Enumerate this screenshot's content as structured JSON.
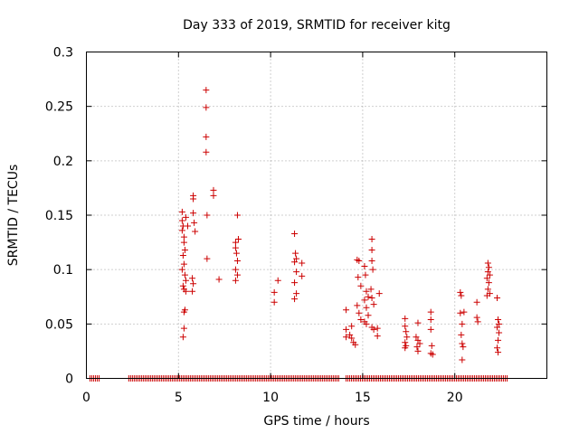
{
  "chart_data": {
    "type": "scatter",
    "title": "Day 333 of 2019, SRMTID for receiver kitg",
    "xlabel": "GPS time / hours",
    "ylabel": "SRMTID / TECUs",
    "xlim": [
      0,
      25
    ],
    "ylim": [
      0,
      0.3
    ],
    "xticks": [
      0,
      5,
      10,
      15,
      20
    ],
    "yticks": [
      0,
      0.05,
      0.1,
      0.15,
      0.2,
      0.25,
      0.3
    ],
    "x_tick_labels": [
      "0",
      "5",
      "10",
      "15",
      "20"
    ],
    "y_tick_labels": [
      "0",
      "0.05",
      "0.1",
      "0.15",
      "0.2",
      "0.25",
      "0.3"
    ],
    "grid": true,
    "marker": "+",
    "color": "#cc0000",
    "zero_band": [
      [
        0.2,
        0.7
      ],
      [
        2.3,
        13.7
      ],
      [
        14.1,
        22.9
      ]
    ],
    "series": [
      {
        "name": "SRMTID",
        "points": [
          [
            5.2,
            0.153
          ],
          [
            5.2,
            0.145
          ],
          [
            5.25,
            0.14
          ],
          [
            5.2,
            0.136
          ],
          [
            5.3,
            0.13
          ],
          [
            5.3,
            0.125
          ],
          [
            5.35,
            0.118
          ],
          [
            5.25,
            0.113
          ],
          [
            5.3,
            0.105
          ],
          [
            5.2,
            0.1
          ],
          [
            5.35,
            0.095
          ],
          [
            5.4,
            0.09
          ],
          [
            5.25,
            0.085
          ],
          [
            5.3,
            0.082
          ],
          [
            5.4,
            0.08
          ],
          [
            5.35,
            0.063
          ],
          [
            5.3,
            0.061
          ],
          [
            5.3,
            0.046
          ],
          [
            5.25,
            0.038
          ],
          [
            5.4,
            0.148
          ],
          [
            5.5,
            0.14
          ],
          [
            5.8,
            0.168
          ],
          [
            5.8,
            0.165
          ],
          [
            5.8,
            0.152
          ],
          [
            5.85,
            0.143
          ],
          [
            5.9,
            0.135
          ],
          [
            5.75,
            0.092
          ],
          [
            5.8,
            0.087
          ],
          [
            5.75,
            0.08
          ],
          [
            6.5,
            0.265
          ],
          [
            6.5,
            0.249
          ],
          [
            6.5,
            0.222
          ],
          [
            6.5,
            0.208
          ],
          [
            6.55,
            0.15
          ],
          [
            6.55,
            0.11
          ],
          [
            6.9,
            0.173
          ],
          [
            6.9,
            0.168
          ],
          [
            7.2,
            0.091
          ],
          [
            8.1,
            0.125
          ],
          [
            8.1,
            0.12
          ],
          [
            8.15,
            0.115
          ],
          [
            8.2,
            0.108
          ],
          [
            8.1,
            0.1
          ],
          [
            8.2,
            0.095
          ],
          [
            8.1,
            0.09
          ],
          [
            8.2,
            0.15
          ],
          [
            8.25,
            0.128
          ],
          [
            10.2,
            0.079
          ],
          [
            10.2,
            0.07
          ],
          [
            10.4,
            0.09
          ],
          [
            11.3,
            0.133
          ],
          [
            11.35,
            0.115
          ],
          [
            11.4,
            0.11
          ],
          [
            11.3,
            0.107
          ],
          [
            11.4,
            0.098
          ],
          [
            11.3,
            0.088
          ],
          [
            11.4,
            0.078
          ],
          [
            11.3,
            0.073
          ],
          [
            11.7,
            0.106
          ],
          [
            11.7,
            0.094
          ],
          [
            14.1,
            0.063
          ],
          [
            14.1,
            0.045
          ],
          [
            14.1,
            0.038
          ],
          [
            14.4,
            0.048
          ],
          [
            14.4,
            0.037
          ],
          [
            14.5,
            0.033
          ],
          [
            14.6,
            0.031
          ],
          [
            14.3,
            0.04
          ],
          [
            14.7,
            0.109
          ],
          [
            14.8,
            0.108
          ],
          [
            14.75,
            0.093
          ],
          [
            14.9,
            0.085
          ],
          [
            14.7,
            0.067
          ],
          [
            14.8,
            0.06
          ],
          [
            14.9,
            0.054
          ],
          [
            15.1,
            0.103
          ],
          [
            15.15,
            0.095
          ],
          [
            15.2,
            0.08
          ],
          [
            15.1,
            0.072
          ],
          [
            15.2,
            0.065
          ],
          [
            15.3,
            0.058
          ],
          [
            15.1,
            0.052
          ],
          [
            15.2,
            0.05
          ],
          [
            15.3,
            0.075
          ],
          [
            15.5,
            0.128
          ],
          [
            15.5,
            0.118
          ],
          [
            15.5,
            0.108
          ],
          [
            15.55,
            0.1
          ],
          [
            15.45,
            0.082
          ],
          [
            15.5,
            0.074
          ],
          [
            15.6,
            0.068
          ],
          [
            15.5,
            0.047
          ],
          [
            15.6,
            0.045
          ],
          [
            15.9,
            0.078
          ],
          [
            15.8,
            0.046
          ],
          [
            15.8,
            0.039
          ],
          [
            17.3,
            0.055
          ],
          [
            17.3,
            0.048
          ],
          [
            17.35,
            0.043
          ],
          [
            17.4,
            0.038
          ],
          [
            17.3,
            0.033
          ],
          [
            17.35,
            0.03
          ],
          [
            17.3,
            0.028
          ],
          [
            18.0,
            0.051
          ],
          [
            17.9,
            0.038
          ],
          [
            18.0,
            0.035
          ],
          [
            18.1,
            0.032
          ],
          [
            17.95,
            0.029
          ],
          [
            18.0,
            0.025
          ],
          [
            18.7,
            0.061
          ],
          [
            18.7,
            0.054
          ],
          [
            18.7,
            0.045
          ],
          [
            18.75,
            0.03
          ],
          [
            18.7,
            0.023
          ],
          [
            18.8,
            0.022
          ],
          [
            20.3,
            0.079
          ],
          [
            20.35,
            0.076
          ],
          [
            20.3,
            0.06
          ],
          [
            20.4,
            0.05
          ],
          [
            20.35,
            0.04
          ],
          [
            20.4,
            0.032
          ],
          [
            20.45,
            0.029
          ],
          [
            20.4,
            0.017
          ],
          [
            20.5,
            0.061
          ],
          [
            21.2,
            0.07
          ],
          [
            21.2,
            0.056
          ],
          [
            21.25,
            0.052
          ],
          [
            21.8,
            0.106
          ],
          [
            21.85,
            0.102
          ],
          [
            21.8,
            0.098
          ],
          [
            21.9,
            0.095
          ],
          [
            21.75,
            0.092
          ],
          [
            21.85,
            0.088
          ],
          [
            21.8,
            0.082
          ],
          [
            21.9,
            0.078
          ],
          [
            21.75,
            0.076
          ],
          [
            22.3,
            0.074
          ],
          [
            22.35,
            0.054
          ],
          [
            22.4,
            0.05
          ],
          [
            22.3,
            0.047
          ],
          [
            22.4,
            0.042
          ],
          [
            22.35,
            0.035
          ],
          [
            22.3,
            0.028
          ],
          [
            22.35,
            0.024
          ]
        ]
      }
    ]
  }
}
